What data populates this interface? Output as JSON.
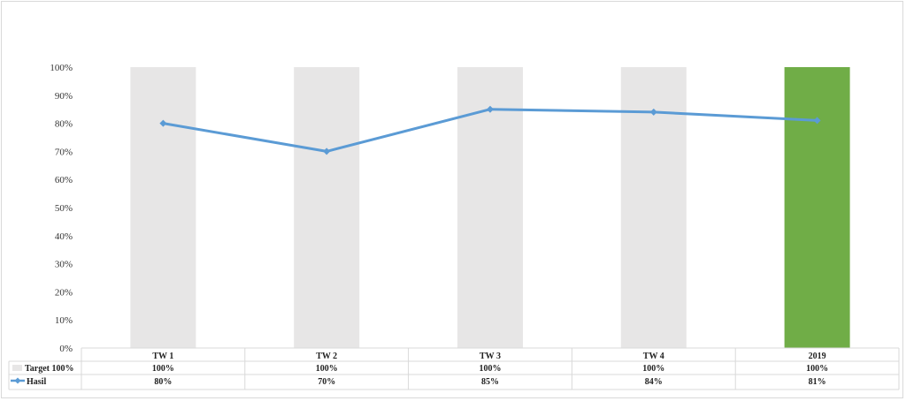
{
  "chart_data": {
    "type": "bar",
    "categories": [
      "TW 1",
      "TW 2",
      "TW 3",
      "TW 4",
      "2019"
    ],
    "ylim": [
      0,
      100
    ],
    "yticks": [
      "0%",
      "10%",
      "20%",
      "30%",
      "40%",
      "50%",
      "60%",
      "70%",
      "80%",
      "90%",
      "100%"
    ],
    "series": [
      {
        "name": "Target 100%",
        "kind": "bar",
        "values": [
          100,
          100,
          100,
          100,
          100
        ],
        "labels": [
          "100%",
          "100%",
          "100%",
          "100%",
          "100%"
        ],
        "color": "#e7e6e6",
        "highlight_color": "#70ad47",
        "highlight_index": 4
      },
      {
        "name": "Hasil",
        "kind": "line",
        "values": [
          80,
          70,
          85,
          84,
          81
        ],
        "labels": [
          "80%",
          "70%",
          "85%",
          "84%",
          "81%"
        ],
        "color": "#5b9bd5"
      }
    ],
    "grid": false,
    "legend": "data-table"
  }
}
